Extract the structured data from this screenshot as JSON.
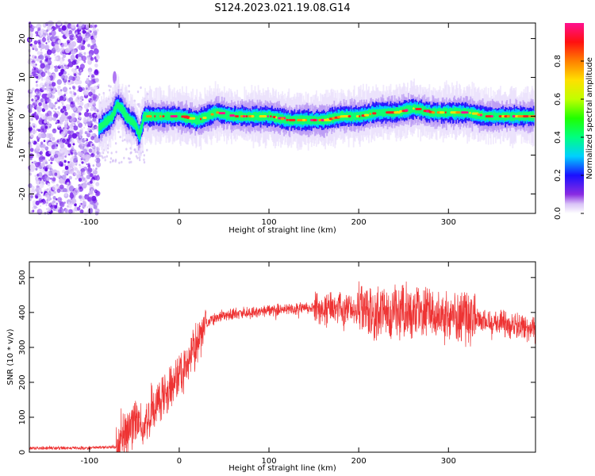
{
  "title": "S124.2023.021.19.08.G14",
  "chart_data": [
    {
      "type": "heatmap",
      "name": "spectrogram",
      "xlabel": "Height of straight line (km)",
      "ylabel": "Frequency (Hz)",
      "xlim": [
        -167,
        397
      ],
      "ylim": [
        -25,
        24
      ],
      "xticks": [
        -100,
        0,
        100,
        200,
        300
      ],
      "yticks": [
        -20,
        -10,
        0,
        10,
        20
      ],
      "noise_region_x": [
        -167,
        -90
      ],
      "ridge": {
        "x": [
          -90,
          -80,
          -75,
          -70,
          -65,
          -60,
          -55,
          -50,
          -45,
          -40,
          -30,
          -20,
          0,
          20,
          40,
          60,
          80,
          100,
          120,
          140,
          160,
          180,
          200,
          220,
          240,
          260,
          280,
          300,
          320,
          340,
          360,
          380,
          395
        ],
        "y": [
          -3,
          -1,
          0,
          3,
          2,
          0,
          -1,
          -2,
          -5,
          0,
          0,
          0,
          0,
          -1,
          1,
          0,
          0,
          0,
          -1,
          -1,
          -1,
          0,
          0,
          1,
          1,
          2,
          1,
          1,
          1,
          0,
          0,
          0,
          0
        ]
      },
      "colorbar": {
        "label": "Normalized spectral amplitude",
        "range": [
          0,
          1
        ],
        "ticks": [
          "0.0",
          "0.2",
          "0.4",
          "0.6",
          "0.8"
        ],
        "tick_values": [
          0.0,
          0.2,
          0.4,
          0.6,
          0.8
        ],
        "colormap": "rainbow"
      }
    },
    {
      "type": "line",
      "name": "snr",
      "xlabel": "Height of straight line (km)",
      "ylabel": "SNR (10 * v/v)",
      "xlim": [
        -167,
        397
      ],
      "ylim": [
        0,
        545
      ],
      "xticks": [
        -100,
        0,
        100,
        200,
        300
      ],
      "yticks": [
        0,
        100,
        200,
        300,
        400,
        500
      ],
      "color": "#ee3333",
      "envelope": {
        "x": [
          -167,
          -100,
          -70,
          -60,
          -50,
          -40,
          -30,
          -20,
          -10,
          0,
          10,
          20,
          30,
          50,
          80,
          100,
          150,
          200,
          250,
          300,
          350,
          397
        ],
        "y": [
          12,
          12,
          15,
          50,
          90,
          60,
          130,
          160,
          190,
          220,
          260,
          320,
          370,
          395,
          400,
          405,
          415,
          410,
          400,
          395,
          375,
          350
        ]
      }
    }
  ]
}
